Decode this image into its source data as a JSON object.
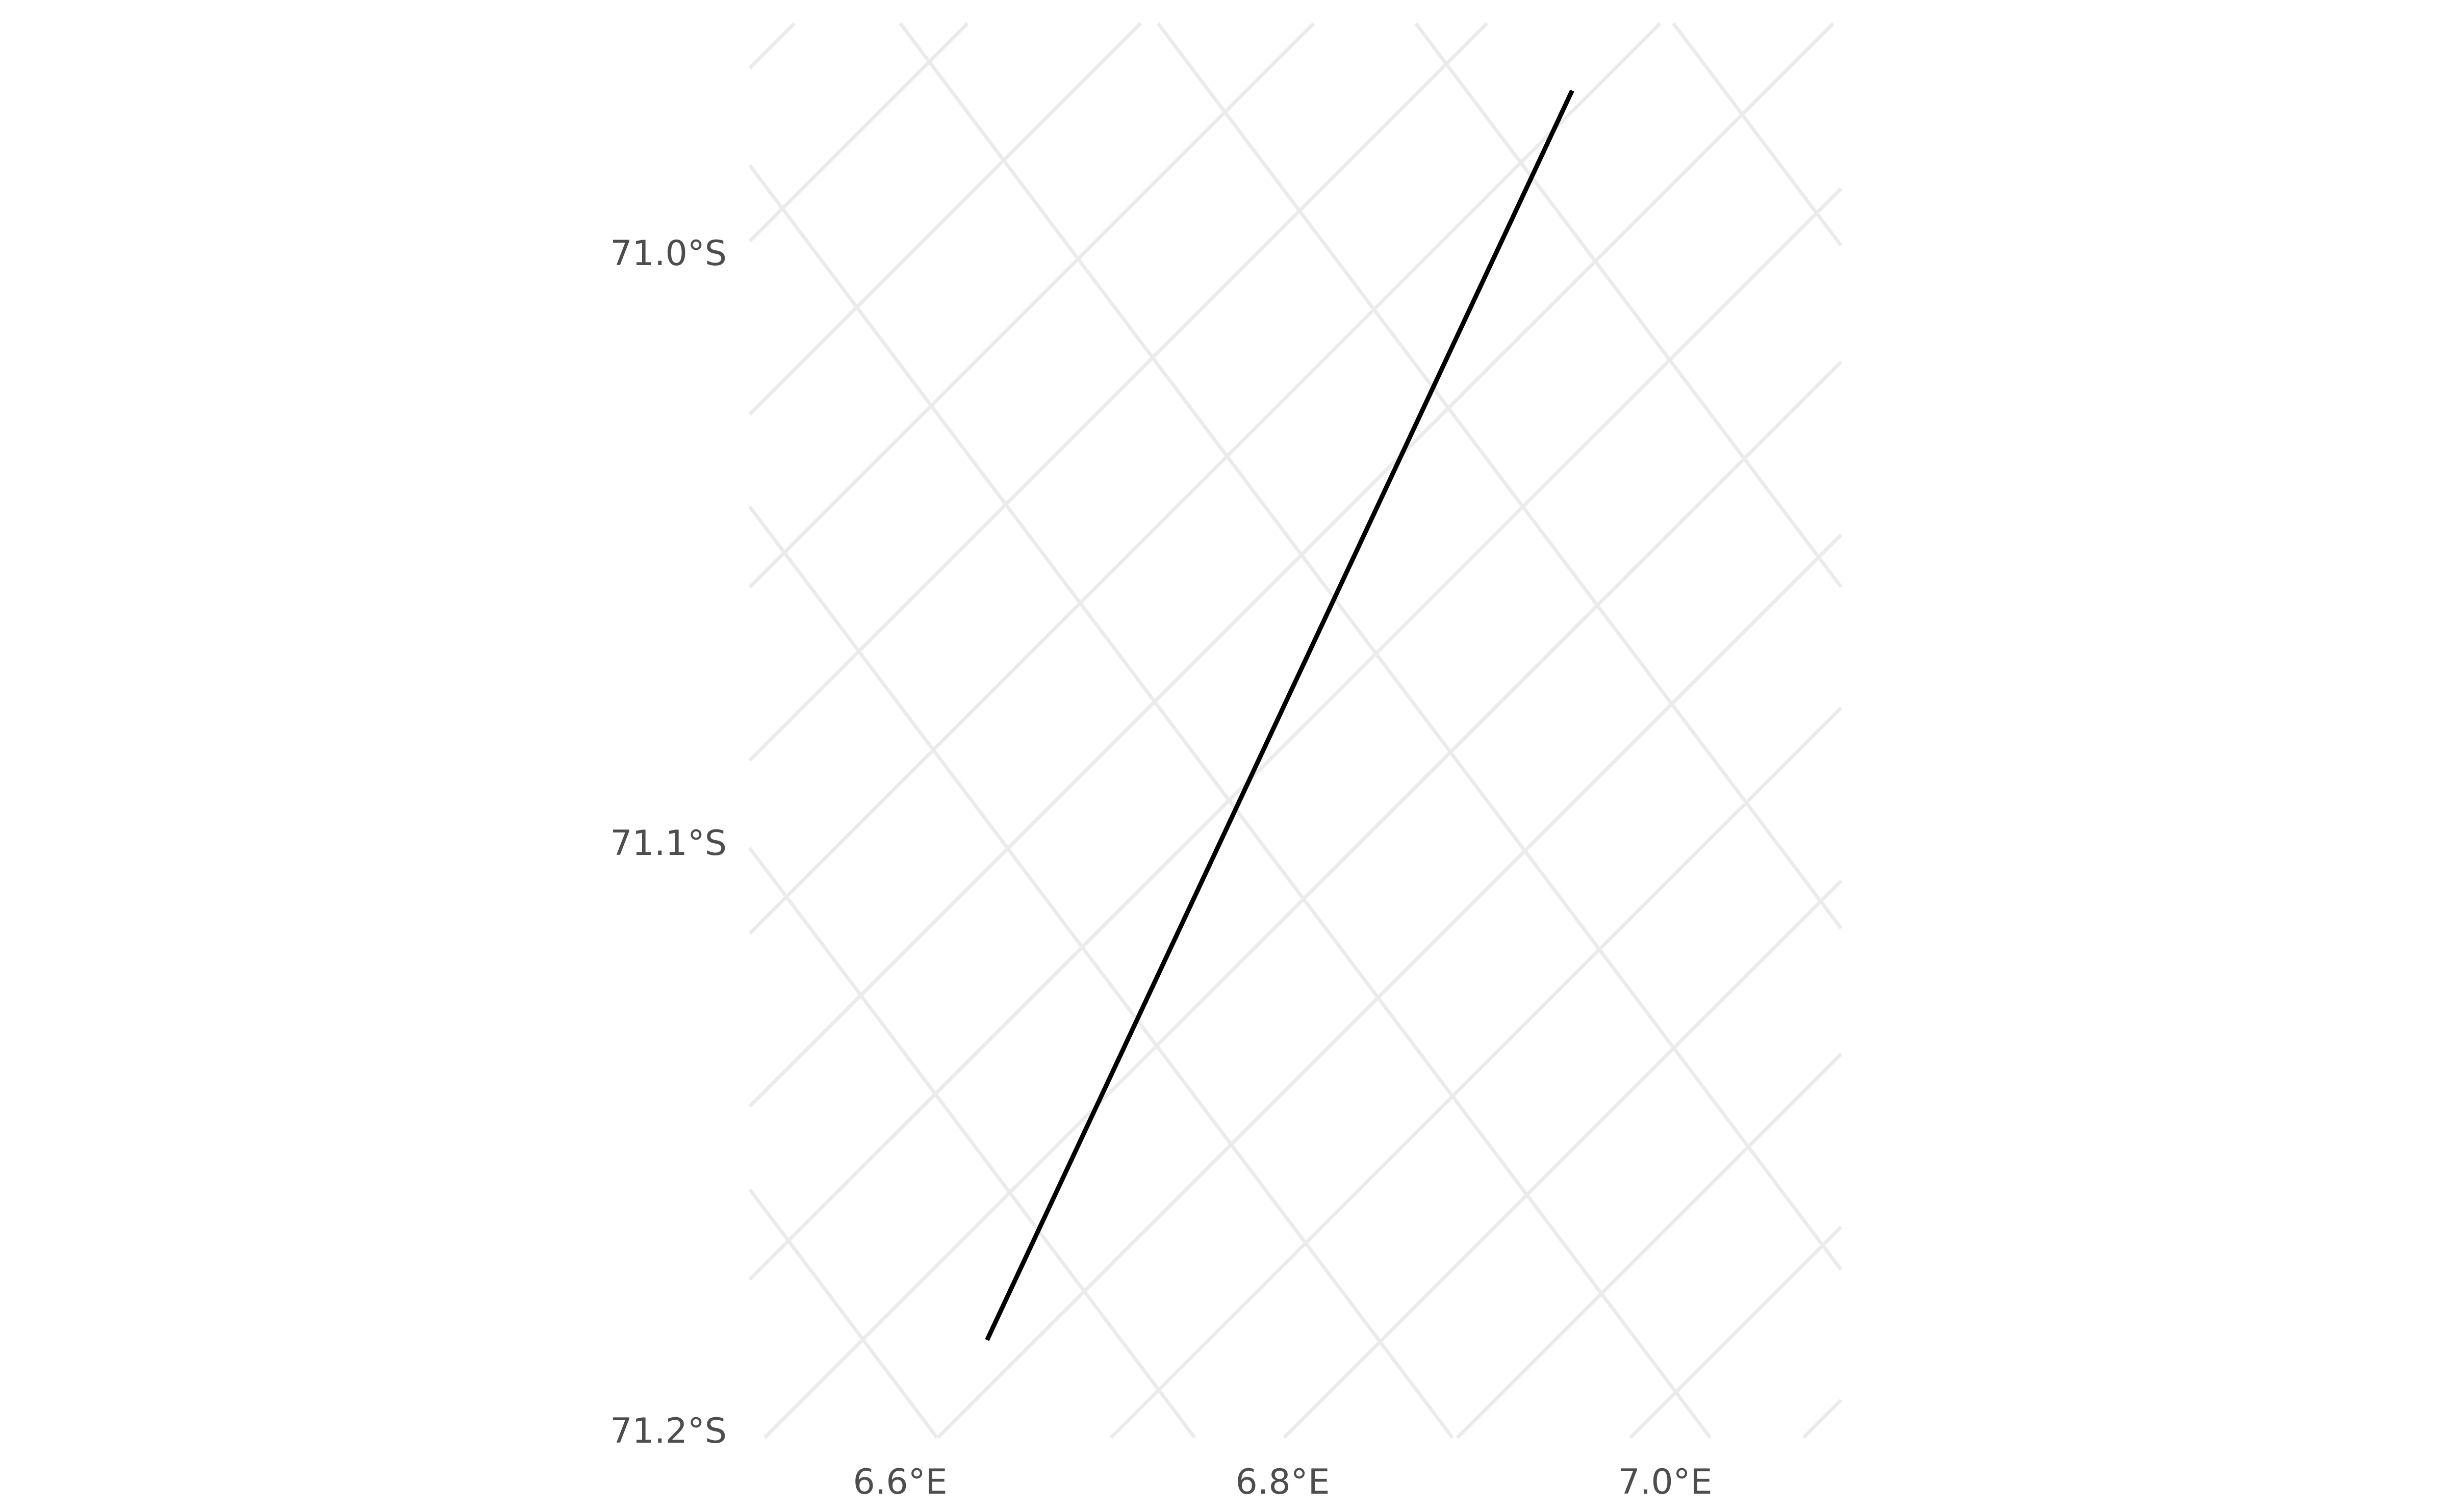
{
  "chart_data": {
    "type": "line",
    "title": "",
    "xlabel": "",
    "ylabel": "",
    "projection": "polar stereographic (rotated graticule)",
    "grid": true,
    "colors": {
      "background": "#ffffff",
      "graticule": "#ebebeb",
      "track": "#000000",
      "tick_text": "#4d4d4d"
    },
    "x_ticks": [
      {
        "value": 6.6,
        "label": "6.6°E"
      },
      {
        "value": 6.8,
        "label": "6.8°E"
      },
      {
        "value": 7.0,
        "label": "7.0°E"
      }
    ],
    "y_ticks": [
      {
        "value": -71.0,
        "label": "71.0°S"
      },
      {
        "value": -71.1,
        "label": "71.1°S"
      },
      {
        "value": -71.2,
        "label": "71.2°S"
      }
    ],
    "series": [
      {
        "lon": [
          6.548,
          7.141
        ],
        "lat": [
          -71.186,
          -70.994
        ]
      }
    ]
  }
}
